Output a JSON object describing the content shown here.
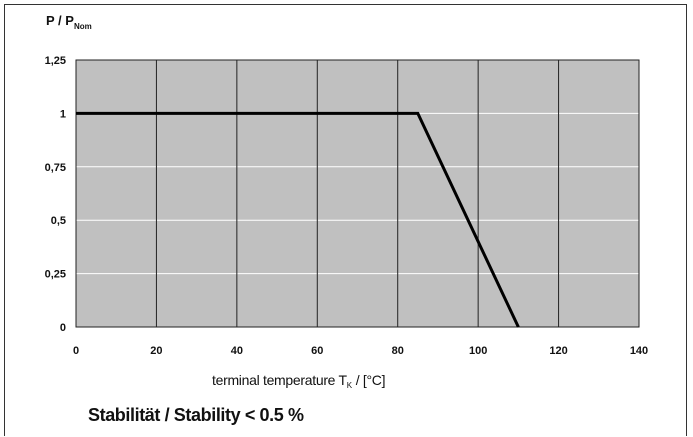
{
  "chart_data": {
    "type": "line",
    "ylabel": "P / P",
    "ylabel_sub": "Nom",
    "xlabel": "terminal temperature T",
    "xlabel_sub": "K",
    "xlabel_unit": " / [°C]",
    "xlim": [
      0,
      140
    ],
    "ylim": [
      0,
      1.25
    ],
    "x_ticks": [
      0,
      20,
      40,
      60,
      80,
      100,
      120,
      140
    ],
    "x_tick_labels": [
      "0",
      "20",
      "40",
      "60",
      "80",
      "100",
      "120",
      "140"
    ],
    "y_ticks": [
      0,
      0.25,
      0.5,
      0.75,
      1,
      1.25
    ],
    "y_tick_labels": [
      "0",
      "0,25",
      "0,5",
      "0,75",
      "1",
      "1,25"
    ],
    "grid": true,
    "plot_background": "#c0c0c0",
    "grid_color": "#ffffff",
    "line_color": "#000000",
    "series": [
      {
        "x": [
          0,
          85,
          110
        ],
        "y": [
          1,
          1,
          0
        ]
      }
    ]
  },
  "caption": "Stabilität / Stability < 0.5 %"
}
